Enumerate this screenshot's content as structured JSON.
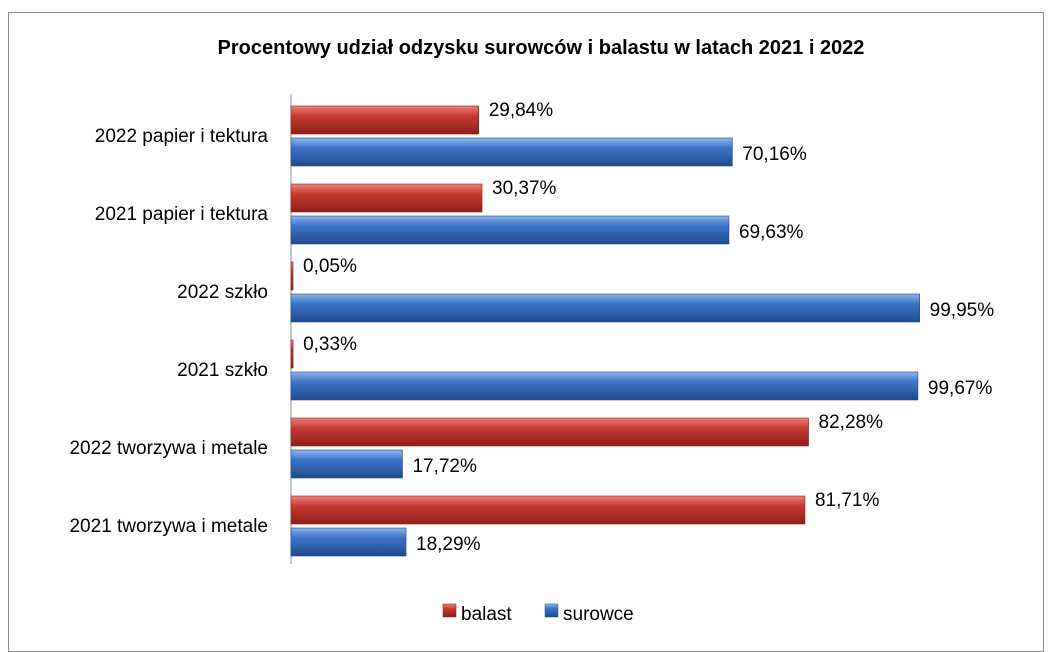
{
  "chart_data": {
    "type": "bar",
    "orientation": "horizontal",
    "title": "Procentowy udział odzysku surowców i balastu w latach 2021 i 2022",
    "categories": [
      "2022 papier i tektura",
      "2021 papier i tektura",
      "2022 szkło",
      "2021 szkło",
      "2022 tworzywa i metale",
      "2021 tworzywa i metale"
    ],
    "series": [
      {
        "name": "balast",
        "color": "#c0392b",
        "values": [
          29.84,
          30.37,
          0.05,
          0.33,
          82.28,
          81.71
        ],
        "labels": [
          "29,84%",
          "30,37%",
          "0,05%",
          "0,33%",
          "82,28%",
          "81,71%"
        ]
      },
      {
        "name": "surowce",
        "color": "#3a72c4",
        "values": [
          70.16,
          69.63,
          99.95,
          99.67,
          17.72,
          18.29
        ],
        "labels": [
          "70,16%",
          "69,63%",
          "99,95%",
          "99,67%",
          "17,72%",
          "18,29%"
        ]
      }
    ],
    "xlim": [
      0,
      100
    ],
    "grid": false,
    "legend_position": "bottom"
  }
}
